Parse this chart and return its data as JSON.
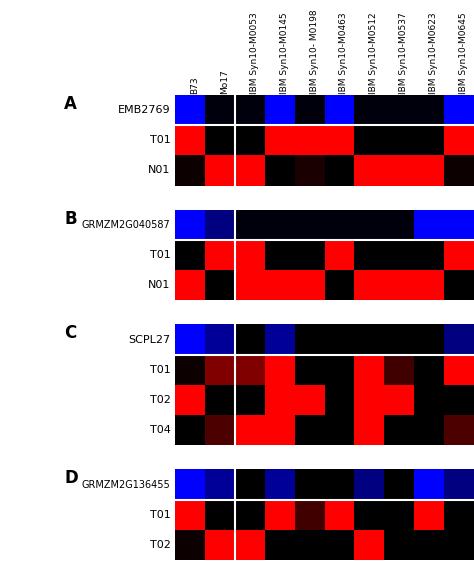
{
  "columns": [
    "B73",
    "Mo17",
    "IBM Syn10-M0053",
    "IBM Syn10-M0145",
    "IBM Syn10- M0198",
    "IBM Syn10-M0463",
    "IBM Syn10-M0512",
    "IBM Syn10-M0537",
    "IBM Syn10-M0623",
    "IBM Syn10-M0645"
  ],
  "panels": {
    "A": {
      "label": "A",
      "rows": [
        "EMB2769",
        "T01",
        "N01"
      ],
      "grid": [
        [
          1.0,
          0.05,
          0.05,
          1.0,
          0.05,
          1.0,
          0.05,
          0.05,
          0.05,
          1.0
        ],
        [
          1.0,
          0.0,
          0.0,
          1.0,
          1.0,
          1.0,
          0.0,
          0.0,
          0.0,
          1.0
        ],
        [
          0.05,
          1.0,
          1.0,
          0.0,
          0.1,
          0.0,
          1.0,
          1.0,
          1.0,
          0.05
        ]
      ],
      "blue_row": [
        true,
        false,
        false
      ]
    },
    "B": {
      "label": "B",
      "rows": [
        "GRMZM2G040587",
        "T01",
        "N01"
      ],
      "grid": [
        [
          1.0,
          0.5,
          0.05,
          0.05,
          0.05,
          0.05,
          0.05,
          0.05,
          1.0,
          1.0
        ],
        [
          0.0,
          1.0,
          1.0,
          0.0,
          0.0,
          1.0,
          0.0,
          0.0,
          0.0,
          1.0
        ],
        [
          1.0,
          0.0,
          1.0,
          1.0,
          1.0,
          0.0,
          1.0,
          1.0,
          1.0,
          0.0
        ]
      ],
      "blue_row": [
        true,
        false,
        false
      ]
    },
    "C": {
      "label": "C",
      "rows": [
        "SCPL27",
        "T01",
        "T02",
        "T04"
      ],
      "grid": [
        [
          1.0,
          0.6,
          0.0,
          0.6,
          0.0,
          0.0,
          0.0,
          0.0,
          0.0,
          0.5
        ],
        [
          0.05,
          0.5,
          0.5,
          1.0,
          0.0,
          0.0,
          1.0,
          0.25,
          0.0,
          1.0
        ],
        [
          1.0,
          0.0,
          0.0,
          1.0,
          1.0,
          0.0,
          1.0,
          1.0,
          0.0,
          0.0
        ],
        [
          0.0,
          0.3,
          1.0,
          1.0,
          0.0,
          0.0,
          1.0,
          0.0,
          0.0,
          0.3
        ]
      ],
      "blue_row": [
        true,
        false,
        false,
        false
      ]
    },
    "D": {
      "label": "D",
      "rows": [
        "GRMZM2G136455",
        "T01",
        "T02"
      ],
      "grid": [
        [
          1.0,
          0.6,
          0.0,
          0.6,
          0.0,
          0.0,
          0.5,
          0.0,
          1.0,
          0.5
        ],
        [
          1.0,
          0.0,
          0.0,
          1.0,
          0.25,
          1.0,
          0.0,
          0.0,
          1.0,
          0.0
        ],
        [
          0.05,
          1.0,
          1.0,
          0.0,
          0.0,
          0.0,
          1.0,
          0.0,
          0.0,
          0.0
        ]
      ],
      "blue_row": [
        true,
        false,
        false
      ]
    }
  },
  "panel_order": [
    "A",
    "B",
    "C",
    "D"
  ],
  "panel_nrows": [
    3,
    3,
    4,
    3
  ]
}
